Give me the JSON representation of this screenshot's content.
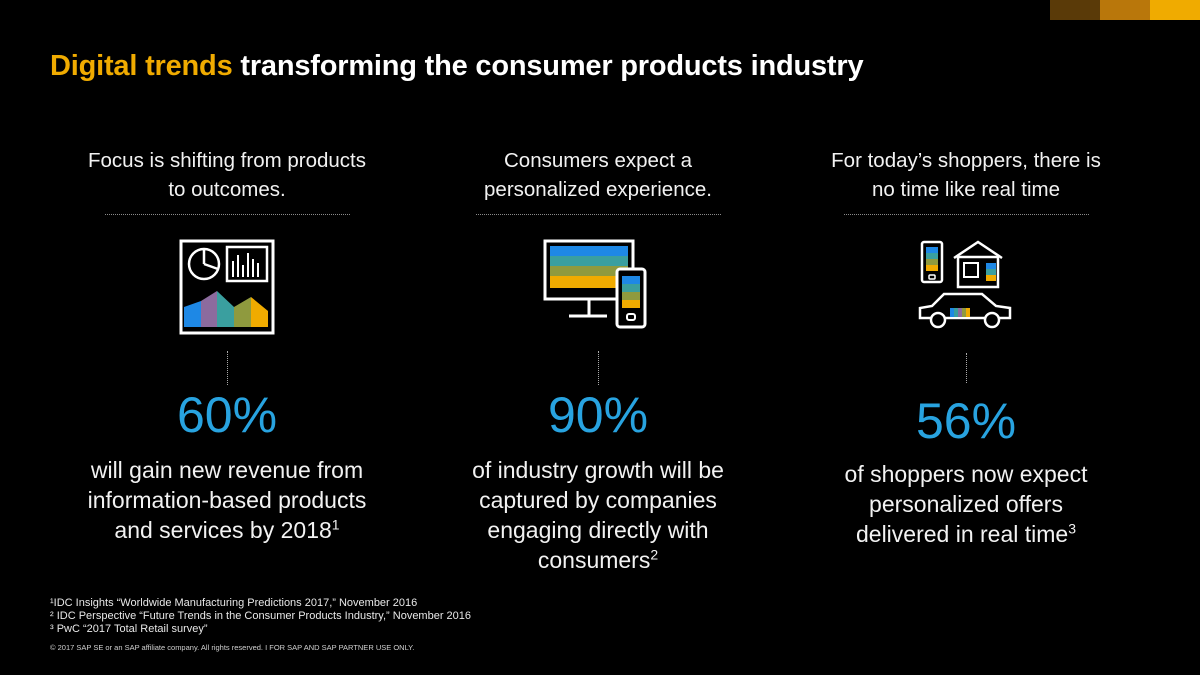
{
  "title": {
    "accent": "Digital trends",
    "rest": " transforming the consumer products industry"
  },
  "colors": {
    "accent": "#f0ab00",
    "stat": "#28a3e0",
    "background": "#000000"
  },
  "columns": [
    {
      "heading": [
        "Focus is shifting from products",
        "to outcomes."
      ],
      "icon": "dashboard-icon",
      "stat": "60%",
      "desc": [
        "will gain new revenue from",
        "information-based products",
        "and services by 2018"
      ],
      "sup": "1"
    },
    {
      "heading": [
        "Consumers expect a",
        "personalized experience."
      ],
      "icon": "monitor-and-phone-icon",
      "stat": "90%",
      "desc": [
        "of industry growth will be",
        "captured by companies",
        "engaging directly with",
        "consumers"
      ],
      "sup": "2"
    },
    {
      "heading": [
        "For today’s shoppers, there is",
        "no time like real time"
      ],
      "icon": "phone-house-car-icon",
      "stat": "56%",
      "desc": [
        "of shoppers now expect",
        "personalized offers",
        "delivered in real time"
      ],
      "sup": "3"
    }
  ],
  "footnotes": [
    "¹IDC Insights “Worldwide Manufacturing Predictions 2017,” November 2016",
    "² IDC Perspective “Future Trends in the Consumer Products Industry,” November 2016",
    "³ PwC “2017 Total Retail survey”"
  ],
  "copyright": "© 2017 SAP SE or an SAP affiliate company. All rights reserved.   I   FOR SAP AND SAP PARTNER USE ONLY."
}
